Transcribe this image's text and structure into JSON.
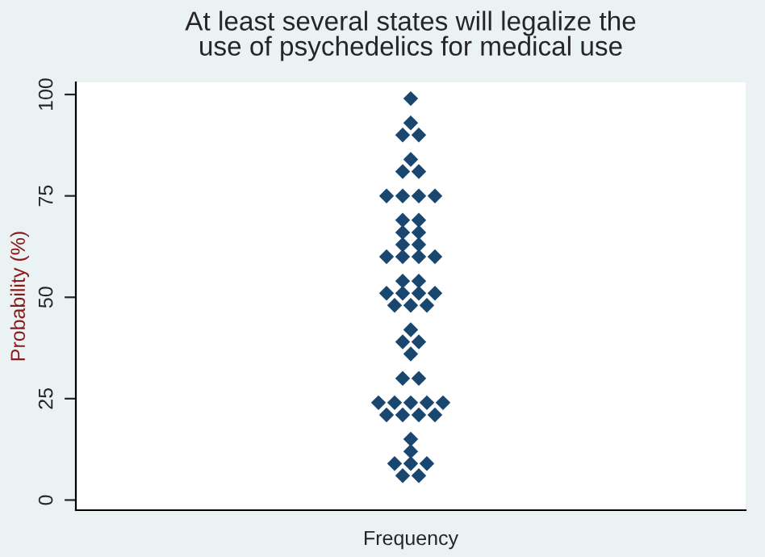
{
  "chart_data": {
    "type": "scatter",
    "title": "At least several states will legalize the\nuse of psychedelics for medical use",
    "xlabel": "Frequency",
    "ylabel": "Probability (%)",
    "categories": [
      null,
      null,
      null,
      null,
      null,
      null,
      null,
      null,
      null,
      null,
      null,
      null,
      null,
      null,
      null,
      null,
      null,
      null,
      null,
      null,
      null,
      null,
      null,
      null,
      null,
      null,
      null,
      null,
      null,
      null,
      null,
      null,
      null,
      null,
      null,
      null,
      null,
      null,
      null,
      null,
      null,
      null,
      null,
      null,
      null,
      null,
      null,
      null,
      null,
      null,
      null,
      null,
      null,
      null,
      null,
      null,
      null,
      null,
      null,
      null,
      null,
      null,
      null,
      null,
      null,
      null,
      null,
      null,
      null,
      null,
      null,
      null,
      null,
      null,
      null,
      null,
      null,
      null,
      null,
      null,
      null,
      null,
      null
    ],
    "series": [
      {
        "color": "#1a476f",
        "values": [
          null,
          null,
          null,
          null,
          null,
          null,
          null,
          null,
          null,
          null,
          null,
          null,
          null,
          null,
          null,
          null,
          null,
          null,
          null,
          null,
          null,
          null,
          null,
          null,
          null,
          null,
          null,
          null,
          null,
          null,
          null,
          null,
          null,
          null,
          null,
          null,
          null,
          24,
          75,
          48,
          90,
          99,
          90,
          48,
          75,
          24,
          null,
          null,
          null,
          null,
          null,
          null,
          null,
          null,
          null,
          null,
          null,
          null,
          null,
          null,
          null,
          null,
          null,
          null,
          null,
          null,
          null,
          null,
          null,
          null,
          null,
          null,
          null,
          null,
          null,
          null,
          null,
          null,
          null,
          null,
          null,
          null,
          null
        ]
      },
      {
        "color": "#1a476f",
        "values": [
          null,
          null,
          null,
          null,
          null,
          null,
          null,
          null,
          null,
          null,
          null,
          null,
          null,
          null,
          null,
          null,
          null,
          null,
          null,
          null,
          null,
          null,
          null,
          null,
          null,
          null,
          null,
          null,
          null,
          null,
          null,
          null,
          null,
          null,
          null,
          null,
          null,
          null,
          60,
          24,
          81,
          93,
          81,
          24,
          60,
          null,
          null,
          null,
          null,
          null,
          null,
          null,
          null,
          null,
          null,
          null,
          null,
          null,
          null,
          null,
          null,
          null,
          null,
          null,
          null,
          null,
          null,
          null,
          null,
          null,
          null,
          null,
          null,
          null,
          null,
          null,
          null,
          null,
          null,
          null,
          null,
          null,
          null
        ]
      },
      {
        "color": "#1a476f",
        "values": [
          null,
          null,
          null,
          null,
          null,
          null,
          null,
          null,
          null,
          null,
          null,
          null,
          null,
          null,
          null,
          null,
          null,
          null,
          null,
          null,
          null,
          null,
          null,
          null,
          null,
          null,
          null,
          null,
          null,
          null,
          null,
          null,
          null,
          null,
          null,
          null,
          null,
          null,
          51,
          9,
          75,
          84,
          75,
          9,
          51,
          null,
          null,
          null,
          null,
          null,
          null,
          null,
          null,
          null,
          null,
          null,
          null,
          null,
          null,
          null,
          null,
          null,
          null,
          null,
          null,
          null,
          null,
          null,
          null,
          null,
          null,
          null,
          null,
          null,
          null,
          null,
          null,
          null,
          null,
          null,
          null,
          null,
          null
        ]
      },
      {
        "color": "#1a476f",
        "values": [
          null,
          null,
          null,
          null,
          null,
          null,
          null,
          null,
          null,
          null,
          null,
          null,
          null,
          null,
          null,
          null,
          null,
          null,
          null,
          null,
          null,
          null,
          null,
          null,
          null,
          null,
          null,
          null,
          null,
          null,
          null,
          null,
          null,
          null,
          null,
          null,
          null,
          null,
          21,
          null,
          69,
          48,
          69,
          null,
          21,
          null,
          null,
          null,
          null,
          null,
          null,
          null,
          null,
          null,
          null,
          null,
          null,
          null,
          null,
          null,
          null,
          null,
          null,
          null,
          null,
          null,
          null,
          null,
          null,
          null,
          null,
          null,
          null,
          null,
          null,
          null,
          null,
          null,
          null,
          null,
          null,
          null,
          null
        ]
      },
      {
        "color": "#1a476f",
        "values": [
          null,
          null,
          null,
          null,
          null,
          null,
          null,
          null,
          null,
          null,
          null,
          null,
          null,
          null,
          null,
          null,
          null,
          null,
          null,
          null,
          null,
          null,
          null,
          null,
          null,
          null,
          null,
          null,
          null,
          null,
          null,
          null,
          null,
          null,
          null,
          null,
          null,
          null,
          null,
          null,
          66,
          42,
          66,
          null,
          null,
          null,
          null,
          null,
          null,
          null,
          null,
          null,
          null,
          null,
          null,
          null,
          null,
          null,
          null,
          null,
          null,
          null,
          null,
          null,
          null,
          null,
          null,
          null,
          null,
          null,
          null,
          null,
          null,
          null,
          null,
          null,
          null,
          null,
          null,
          null,
          null,
          null,
          null
        ]
      },
      {
        "color": "#1a476f",
        "values": [
          null,
          null,
          null,
          null,
          null,
          null,
          null,
          null,
          null,
          null,
          null,
          null,
          null,
          null,
          null,
          null,
          null,
          null,
          null,
          null,
          null,
          null,
          null,
          null,
          null,
          null,
          null,
          null,
          null,
          null,
          null,
          null,
          null,
          null,
          null,
          null,
          null,
          null,
          null,
          null,
          63,
          36,
          63,
          null,
          null,
          null,
          null,
          null,
          null,
          null,
          null,
          null,
          null,
          null,
          null,
          null,
          null,
          null,
          null,
          null,
          null,
          null,
          null,
          null,
          null,
          null,
          null,
          null,
          null,
          null,
          null,
          null,
          null,
          null,
          null,
          null,
          null,
          null,
          null,
          null,
          null,
          null,
          null
        ]
      },
      {
        "color": "#1a476f",
        "values": [
          null,
          null,
          null,
          null,
          null,
          null,
          null,
          null,
          null,
          null,
          null,
          null,
          null,
          null,
          null,
          null,
          null,
          null,
          null,
          null,
          null,
          null,
          null,
          null,
          null,
          null,
          null,
          null,
          null,
          null,
          null,
          null,
          null,
          null,
          null,
          null,
          null,
          null,
          null,
          null,
          60,
          24,
          60,
          null,
          null,
          null,
          null,
          null,
          null,
          null,
          null,
          null,
          null,
          null,
          null,
          null,
          null,
          null,
          null,
          null,
          null,
          null,
          null,
          null,
          null,
          null,
          null,
          null,
          null,
          null,
          null,
          null,
          null,
          null,
          null,
          null,
          null,
          null,
          null,
          null,
          null,
          null,
          null
        ]
      },
      {
        "color": "#1a476f",
        "values": [
          null,
          null,
          null,
          null,
          null,
          null,
          null,
          null,
          null,
          null,
          null,
          null,
          null,
          null,
          null,
          null,
          null,
          null,
          null,
          null,
          null,
          null,
          null,
          null,
          null,
          null,
          null,
          null,
          null,
          null,
          null,
          null,
          null,
          null,
          null,
          null,
          null,
          null,
          null,
          null,
          54,
          15,
          54,
          null,
          null,
          null,
          null,
          null,
          null,
          null,
          null,
          null,
          null,
          null,
          null,
          null,
          null,
          null,
          null,
          null,
          null,
          null,
          null,
          null,
          null,
          null,
          null,
          null,
          null,
          null,
          null,
          null,
          null,
          null,
          null,
          null,
          null,
          null,
          null,
          null,
          null,
          null,
          null
        ]
      },
      {
        "color": "#1a476f",
        "values": [
          null,
          null,
          null,
          null,
          null,
          null,
          null,
          null,
          null,
          null,
          null,
          null,
          null,
          null,
          null,
          null,
          null,
          null,
          null,
          null,
          null,
          null,
          null,
          null,
          null,
          null,
          null,
          null,
          null,
          null,
          null,
          null,
          null,
          null,
          null,
          null,
          null,
          null,
          null,
          null,
          51,
          12,
          51,
          null,
          null,
          null,
          null,
          null,
          null,
          null,
          null,
          null,
          null,
          null,
          null,
          null,
          null,
          null,
          null,
          null,
          null,
          null,
          null,
          null,
          null,
          null,
          null,
          null,
          null,
          null,
          null,
          null,
          null,
          null,
          null,
          null,
          null,
          null,
          null,
          null,
          null,
          null,
          null
        ]
      },
      {
        "color": "#1a476f",
        "values": [
          null,
          null,
          null,
          null,
          null,
          null,
          null,
          null,
          null,
          null,
          null,
          null,
          null,
          null,
          null,
          null,
          null,
          null,
          null,
          null,
          null,
          null,
          null,
          null,
          null,
          null,
          null,
          null,
          null,
          null,
          null,
          null,
          null,
          null,
          null,
          null,
          null,
          null,
          null,
          null,
          39,
          9,
          39,
          null,
          null,
          null,
          null,
          null,
          null,
          null,
          null,
          null,
          null,
          null,
          null,
          null,
          null,
          null,
          null,
          null,
          null,
          null,
          null,
          null,
          null,
          null,
          null,
          null,
          null,
          null,
          null,
          null,
          null,
          null,
          null,
          null,
          null,
          null,
          null,
          null,
          null,
          null,
          null
        ]
      },
      {
        "color": "#1a476f",
        "values": [
          null,
          null,
          null,
          null,
          null,
          null,
          null,
          null,
          null,
          null,
          null,
          null,
          null,
          null,
          null,
          null,
          null,
          null,
          null,
          null,
          null,
          null,
          null,
          null,
          null,
          null,
          null,
          null,
          null,
          null,
          null,
          null,
          null,
          null,
          null,
          null,
          null,
          null,
          null,
          null,
          30,
          null,
          30,
          null,
          null,
          null,
          null,
          null,
          null,
          null,
          null,
          null,
          null,
          null,
          null,
          null,
          null,
          null,
          null,
          null,
          null,
          null,
          null,
          null,
          null,
          null,
          null,
          null,
          null,
          null,
          null,
          null,
          null,
          null,
          null,
          null,
          null,
          null,
          null,
          null,
          null,
          null,
          null
        ]
      },
      {
        "color": "#1a476f",
        "values": [
          null,
          null,
          null,
          null,
          null,
          null,
          null,
          null,
          null,
          null,
          null,
          null,
          null,
          null,
          null,
          null,
          null,
          null,
          null,
          null,
          null,
          null,
          null,
          null,
          null,
          null,
          null,
          null,
          null,
          null,
          null,
          null,
          null,
          null,
          null,
          null,
          null,
          null,
          null,
          null,
          21,
          null,
          21,
          null,
          null,
          null,
          null,
          null,
          null,
          null,
          null,
          null,
          null,
          null,
          null,
          null,
          null,
          null,
          null,
          null,
          null,
          null,
          null,
          null,
          null,
          null,
          null,
          null,
          null,
          null,
          null,
          null,
          null,
          null,
          null,
          null,
          null,
          null,
          null,
          null,
          null,
          null,
          null
        ]
      },
      {
        "color": "#1a476f",
        "values": [
          null,
          null,
          null,
          null,
          null,
          null,
          null,
          null,
          null,
          null,
          null,
          null,
          null,
          null,
          null,
          null,
          null,
          null,
          null,
          null,
          null,
          null,
          null,
          null,
          null,
          null,
          null,
          null,
          null,
          null,
          null,
          null,
          null,
          null,
          null,
          null,
          null,
          null,
          null,
          null,
          6,
          null,
          6,
          null,
          null,
          null,
          null,
          null,
          null,
          null,
          null,
          null,
          null,
          null,
          null,
          null,
          null,
          null,
          null,
          null,
          null,
          null,
          null,
          null,
          null,
          null,
          null,
          null,
          null,
          null,
          null,
          null,
          null,
          null,
          null,
          null,
          null,
          null,
          null,
          null,
          null,
          null,
          null
        ]
      }
    ],
    "ylim": [
      -2.5,
      103
    ],
    "yticks": [
      0,
      25,
      50,
      75,
      100
    ],
    "tick_labels": "y",
    "marker": "diamond",
    "grid": false,
    "legend": false
  }
}
